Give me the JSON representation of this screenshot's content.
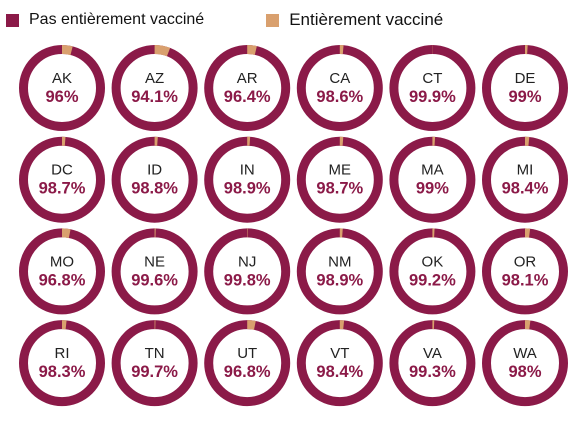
{
  "legend": {
    "items": [
      {
        "label": "Pas entièrement vacciné",
        "color": "#8b1a48"
      },
      {
        "label": "Entièrement vacciné",
        "color": "#d9a06e"
      }
    ]
  },
  "chart_data": {
    "type": "pie",
    "variant": "donut-grid",
    "value_unit": "%",
    "series": [
      {
        "name": "Pas entièrement vacciné",
        "color": "#8b1a48"
      },
      {
        "name": "Entièrement vacciné",
        "color": "#d9a06e"
      }
    ],
    "items": [
      {
        "state": "AK",
        "label": "96%",
        "value": 96
      },
      {
        "state": "AZ",
        "label": "94.1%",
        "value": 94.1
      },
      {
        "state": "AR",
        "label": "96.4%",
        "value": 96.4
      },
      {
        "state": "CA",
        "label": "98.6%",
        "value": 98.6
      },
      {
        "state": "CT",
        "label": "99.9%",
        "value": 99.9
      },
      {
        "state": "DE",
        "label": "99%",
        "value": 99
      },
      {
        "state": "DC",
        "label": "98.7%",
        "value": 98.7
      },
      {
        "state": "ID",
        "label": "98.8%",
        "value": 98.8
      },
      {
        "state": "IN",
        "label": "98.9%",
        "value": 98.9
      },
      {
        "state": "ME",
        "label": "98.7%",
        "value": 98.7
      },
      {
        "state": "MA",
        "label": "99%",
        "value": 99
      },
      {
        "state": "MI",
        "label": "98.4%",
        "value": 98.4
      },
      {
        "state": "MO",
        "label": "96.8%",
        "value": 96.8
      },
      {
        "state": "NE",
        "label": "99.6%",
        "value": 99.6
      },
      {
        "state": "NJ",
        "label": "99.8%",
        "value": 99.8
      },
      {
        "state": "NM",
        "label": "98.9%",
        "value": 98.9
      },
      {
        "state": "OK",
        "label": "99.2%",
        "value": 99.2
      },
      {
        "state": "OR",
        "label": "98.1%",
        "value": 98.1
      },
      {
        "state": "RI",
        "label": "98.3%",
        "value": 98.3
      },
      {
        "state": "TN",
        "label": "99.7%",
        "value": 99.7
      },
      {
        "state": "UT",
        "label": "96.8%",
        "value": 96.8
      },
      {
        "state": "VT",
        "label": "98.4%",
        "value": 98.4
      },
      {
        "state": "VA",
        "label": "99.3%",
        "value": 99.3
      },
      {
        "state": "WA",
        "label": "98%",
        "value": 98
      }
    ]
  }
}
